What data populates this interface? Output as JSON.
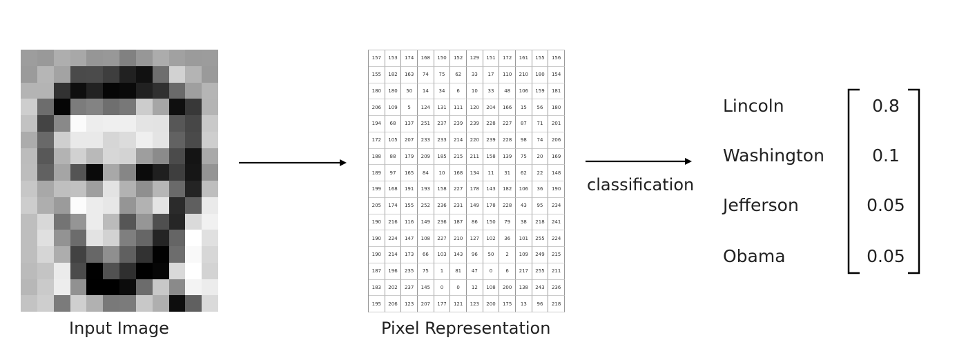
{
  "colors": {
    "text": "#222222",
    "arrow": "#000000",
    "grid_line": "#999999"
  },
  "captions": {
    "input_image": "Input Image",
    "pixel_representation": "Pixel Representation",
    "classification": "classification"
  },
  "pixel_values": [
    [
      157,
      153,
      174,
      168,
      150,
      152,
      129,
      151,
      172,
      161,
      155,
      156
    ],
    [
      155,
      182,
      163,
      74,
      75,
      62,
      33,
      17,
      110,
      210,
      180,
      154
    ],
    [
      180,
      180,
      50,
      14,
      34,
      6,
      10,
      33,
      48,
      106,
      159,
      181
    ],
    [
      206,
      109,
      5,
      124,
      131,
      111,
      120,
      204,
      166,
      15,
      56,
      180
    ],
    [
      194,
      68,
      137,
      251,
      237,
      239,
      239,
      228,
      227,
      87,
      71,
      201
    ],
    [
      172,
      105,
      207,
      233,
      233,
      214,
      220,
      239,
      228,
      98,
      74,
      206
    ],
    [
      188,
      88,
      179,
      209,
      185,
      215,
      211,
      158,
      139,
      75,
      20,
      169
    ],
    [
      189,
      97,
      165,
      84,
      10,
      168,
      134,
      11,
      31,
      62,
      22,
      148
    ],
    [
      199,
      168,
      191,
      193,
      158,
      227,
      178,
      143,
      182,
      106,
      36,
      190
    ],
    [
      205,
      174,
      155,
      252,
      236,
      231,
      149,
      178,
      228,
      43,
      95,
      234
    ],
    [
      190,
      216,
      116,
      149,
      236,
      187,
      86,
      150,
      79,
      38,
      218,
      241
    ],
    [
      190,
      224,
      147,
      108,
      227,
      210,
      127,
      102,
      36,
      101,
      255,
      224
    ],
    [
      190,
      214,
      173,
      66,
      103,
      143,
      96,
      50,
      2,
      109,
      249,
      215
    ],
    [
      187,
      196,
      235,
      75,
      1,
      81,
      47,
      0,
      6,
      217,
      255,
      211
    ],
    [
      183,
      202,
      237,
      145,
      0,
      0,
      12,
      108,
      200,
      138,
      243,
      236
    ],
    [
      195,
      206,
      123,
      207,
      177,
      121,
      123,
      200,
      175,
      13,
      96,
      218
    ]
  ],
  "classes": [
    {
      "label": "Lincoln",
      "value": "0.8"
    },
    {
      "label": "Washington",
      "value": "0.1"
    },
    {
      "label": "Jefferson",
      "value": "0.05"
    },
    {
      "label": "Obama",
      "value": "0.05"
    }
  ]
}
